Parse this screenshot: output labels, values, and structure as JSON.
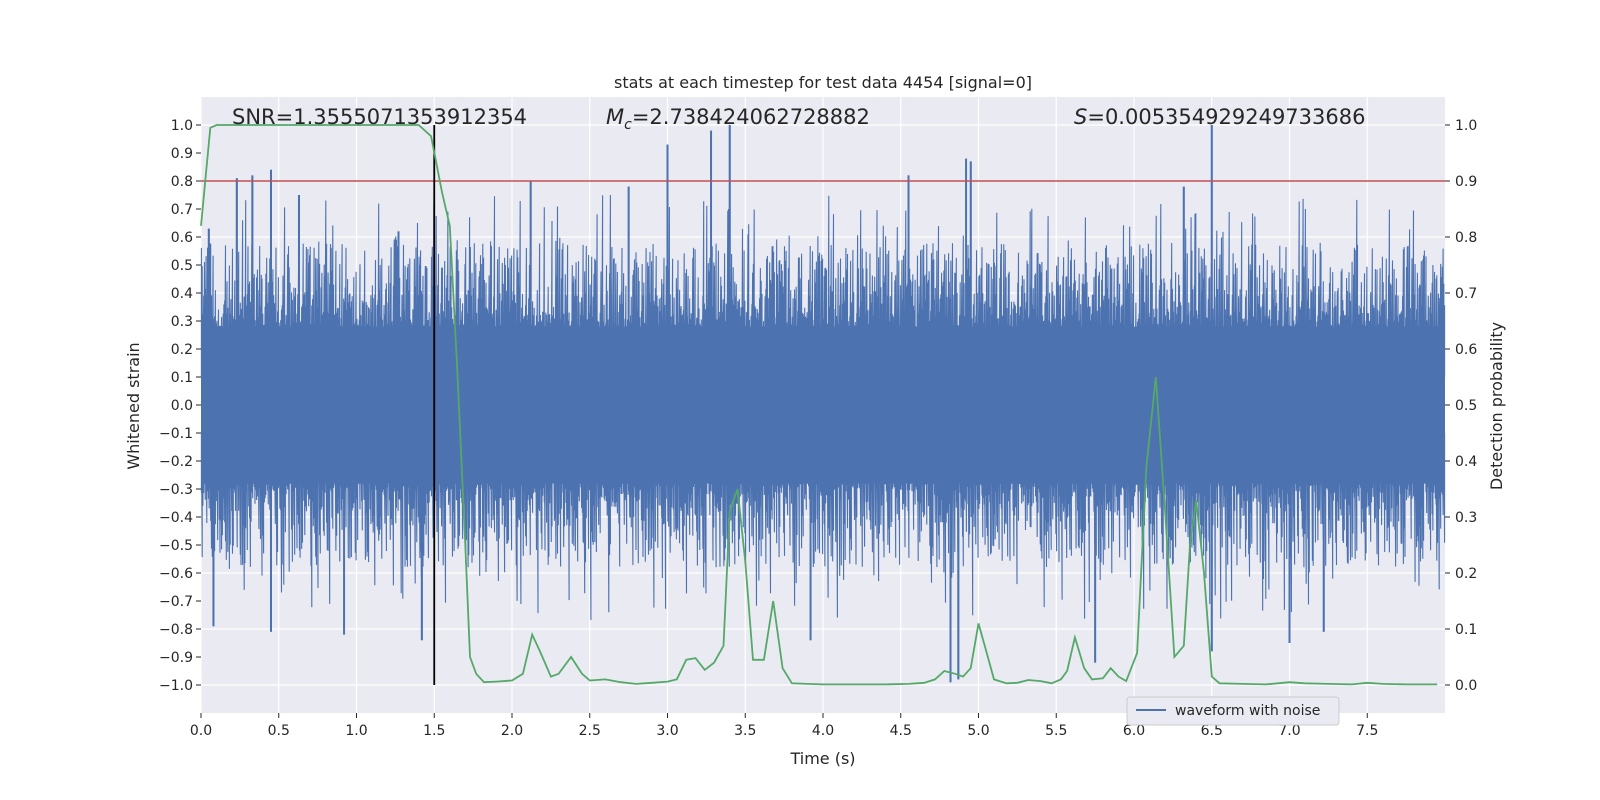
{
  "chart_data": {
    "type": "line",
    "title": "stats at each timestep for test data 4454 [signal=0]",
    "xlabel": "Time (s)",
    "ylabel": "Whitened strain",
    "y2label": "Detection probability",
    "xlim": [
      0,
      8
    ],
    "ylim": [
      -1.1,
      1.1
    ],
    "y2lim": [
      -0.05,
      1.05
    ],
    "x_ticks": [
      0.0,
      0.5,
      1.0,
      1.5,
      2.0,
      2.5,
      3.0,
      3.5,
      4.0,
      4.5,
      5.0,
      5.5,
      6.0,
      6.5,
      7.0,
      7.5
    ],
    "x_tick_labels": [
      "0.0",
      "0.5",
      "1.0",
      "1.5",
      "2.0",
      "2.5",
      "3.0",
      "3.5",
      "4.0",
      "4.5",
      "5.0",
      "5.5",
      "6.0",
      "6.5",
      "7.0",
      "7.5"
    ],
    "y_ticks": [
      1.0,
      0.9,
      0.8,
      0.7,
      0.6,
      0.5,
      0.4,
      0.3,
      0.2,
      0.1,
      0.0,
      -0.1,
      -0.2,
      -0.3,
      -0.4,
      -0.5,
      -0.6,
      -0.7,
      -0.8,
      -0.9,
      -1.0
    ],
    "y_tick_labels": [
      "1.0",
      "0.9",
      "0.8",
      "0.7",
      "0.6",
      "0.5",
      "0.4",
      "0.3",
      "0.2",
      "0.1",
      "0.0",
      "−0.1",
      "−0.2",
      "−0.3",
      "−0.4",
      "−0.5",
      "−0.6",
      "−0.7",
      "−0.8",
      "−0.9",
      "−1.0"
    ],
    "y2_ticks": [
      1.0,
      0.9,
      0.8,
      0.7,
      0.6,
      0.5,
      0.4,
      0.3,
      0.2,
      0.1,
      0.0
    ],
    "y2_tick_labels": [
      "1.0",
      "0.9",
      "0.8",
      "0.7",
      "0.6",
      "0.5",
      "0.4",
      "0.3",
      "0.2",
      "0.1",
      "0.0"
    ],
    "threshold_y": 0.8,
    "vline_x": 1.5,
    "vline_range": [
      -1.0,
      1.0
    ],
    "annotations": {
      "snr": "SNR=1.3555071353912354",
      "mc_symbol": "M",
      "mc_sub": "c",
      "mc_value": "=2.738424062728882",
      "s_symbol": "S",
      "s_value": "=0.005354929249733686"
    },
    "legend": {
      "label": "waveform with noise",
      "position": "lower-right"
    },
    "waveform": {
      "name": "waveform with noise",
      "seed": 4454,
      "n_samples": 1600,
      "dense_band": [
        -0.2,
        0.2
      ],
      "spike_peaks": [
        {
          "x": 0.05,
          "y": 0.63
        },
        {
          "x": 0.23,
          "y": 0.81
        },
        {
          "x": 0.33,
          "y": 0.82
        },
        {
          "x": 0.45,
          "y": 0.84
        },
        {
          "x": 0.63,
          "y": 0.75
        },
        {
          "x": 1.27,
          "y": 0.62
        },
        {
          "x": 2.12,
          "y": 0.8
        },
        {
          "x": 2.75,
          "y": 0.78
        },
        {
          "x": 3.0,
          "y": 0.93
        },
        {
          "x": 3.28,
          "y": 0.98
        },
        {
          "x": 3.4,
          "y": 1.0
        },
        {
          "x": 4.55,
          "y": 0.82
        },
        {
          "x": 4.92,
          "y": 0.88
        },
        {
          "x": 4.95,
          "y": 0.87
        },
        {
          "x": 6.32,
          "y": 0.78
        },
        {
          "x": 6.5,
          "y": 1.0
        },
        {
          "x": 0.08,
          "y": -0.79
        },
        {
          "x": 0.45,
          "y": -0.81
        },
        {
          "x": 0.92,
          "y": -0.82
        },
        {
          "x": 1.42,
          "y": -0.84
        },
        {
          "x": 3.92,
          "y": -0.84
        },
        {
          "x": 4.82,
          "y": -0.99
        },
        {
          "x": 4.87,
          "y": -0.98
        },
        {
          "x": 5.75,
          "y": -0.92
        },
        {
          "x": 6.5,
          "y": -0.88
        },
        {
          "x": 7.0,
          "y": -0.85
        },
        {
          "x": 7.22,
          "y": -0.81
        }
      ]
    },
    "probability": {
      "name": "detection probability",
      "points": [
        [
          0.0,
          0.82
        ],
        [
          0.06,
          0.995
        ],
        [
          0.1,
          1.0
        ],
        [
          0.3,
          1.0
        ],
        [
          0.6,
          1.0
        ],
        [
          1.0,
          1.0
        ],
        [
          1.4,
          1.0
        ],
        [
          1.48,
          0.98
        ],
        [
          1.55,
          0.88
        ],
        [
          1.6,
          0.82
        ],
        [
          1.65,
          0.55
        ],
        [
          1.7,
          0.25
        ],
        [
          1.73,
          0.05
        ],
        [
          1.77,
          0.02
        ],
        [
          1.82,
          0.005
        ],
        [
          1.9,
          0.006
        ],
        [
          2.0,
          0.008
        ],
        [
          2.07,
          0.02
        ],
        [
          2.13,
          0.09
        ],
        [
          2.18,
          0.06
        ],
        [
          2.25,
          0.015
        ],
        [
          2.3,
          0.02
        ],
        [
          2.38,
          0.05
        ],
        [
          2.45,
          0.02
        ],
        [
          2.5,
          0.008
        ],
        [
          2.6,
          0.01
        ],
        [
          2.7,
          0.005
        ],
        [
          2.8,
          0.002
        ],
        [
          2.9,
          0.004
        ],
        [
          3.0,
          0.006
        ],
        [
          3.06,
          0.01
        ],
        [
          3.12,
          0.045
        ],
        [
          3.18,
          0.048
        ],
        [
          3.24,
          0.027
        ],
        [
          3.3,
          0.04
        ],
        [
          3.36,
          0.07
        ],
        [
          3.4,
          0.31
        ],
        [
          3.45,
          0.35
        ],
        [
          3.5,
          0.22
        ],
        [
          3.55,
          0.045
        ],
        [
          3.62,
          0.045
        ],
        [
          3.68,
          0.15
        ],
        [
          3.74,
          0.03
        ],
        [
          3.8,
          0.003
        ],
        [
          3.9,
          0.002
        ],
        [
          4.0,
          0.001
        ],
        [
          4.2,
          0.001
        ],
        [
          4.4,
          0.001
        ],
        [
          4.55,
          0.002
        ],
        [
          4.65,
          0.004
        ],
        [
          4.72,
          0.01
        ],
        [
          4.78,
          0.025
        ],
        [
          4.85,
          0.02
        ],
        [
          4.9,
          0.015
        ],
        [
          4.95,
          0.03
        ],
        [
          5.0,
          0.11
        ],
        [
          5.05,
          0.06
        ],
        [
          5.1,
          0.01
        ],
        [
          5.18,
          0.003
        ],
        [
          5.25,
          0.004
        ],
        [
          5.32,
          0.009
        ],
        [
          5.4,
          0.007
        ],
        [
          5.47,
          0.003
        ],
        [
          5.53,
          0.01
        ],
        [
          5.57,
          0.025
        ],
        [
          5.62,
          0.085
        ],
        [
          5.68,
          0.03
        ],
        [
          5.73,
          0.01
        ],
        [
          5.8,
          0.012
        ],
        [
          5.85,
          0.03
        ],
        [
          5.9,
          0.015
        ],
        [
          5.95,
          0.007
        ],
        [
          6.02,
          0.057
        ],
        [
          6.08,
          0.39
        ],
        [
          6.14,
          0.55
        ],
        [
          6.2,
          0.31
        ],
        [
          6.26,
          0.05
        ],
        [
          6.32,
          0.07
        ],
        [
          6.36,
          0.25
        ],
        [
          6.4,
          0.33
        ],
        [
          6.45,
          0.2
        ],
        [
          6.5,
          0.015
        ],
        [
          6.55,
          0.003
        ],
        [
          6.7,
          0.002
        ],
        [
          6.85,
          0.001
        ],
        [
          7.0,
          0.005
        ],
        [
          7.1,
          0.003
        ],
        [
          7.25,
          0.002
        ],
        [
          7.4,
          0.001
        ],
        [
          7.5,
          0.004
        ],
        [
          7.6,
          0.002
        ],
        [
          7.75,
          0.001
        ],
        [
          7.85,
          0.001
        ],
        [
          7.95,
          0.001
        ]
      ]
    },
    "colors": {
      "background": "#eaeaf2",
      "grid": "#ffffff",
      "waveform": "#4c72b0",
      "probability": "#55a868",
      "threshold": "#c44e52",
      "vline": "#000000",
      "text": "#262626"
    }
  }
}
